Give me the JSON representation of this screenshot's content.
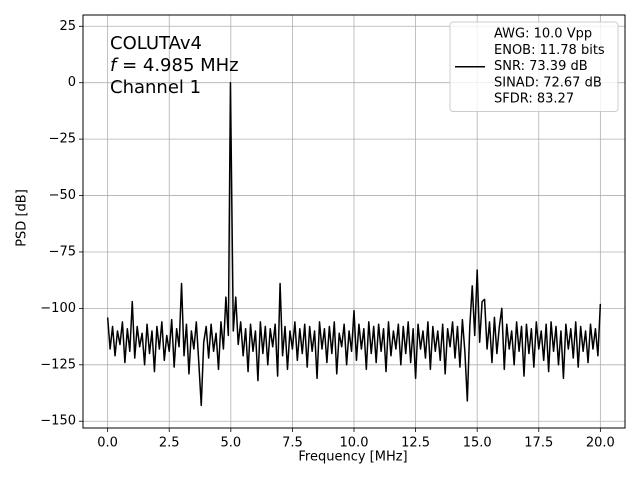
{
  "chart_data": {
    "type": "line",
    "xlabel": "Frequency [MHz]",
    "ylabel": "PSD [dB]",
    "annotation": [
      "COLUTAv4",
      [
        "f",
        " = 4.985 MHz"
      ],
      "Channel 1"
    ],
    "xlim": [
      -1,
      21
    ],
    "ylim": [
      -153,
      30
    ],
    "xticks": [
      {
        "value": 0,
        "label": "0.0"
      },
      2.5,
      {
        "value": 5,
        "label": "5.0"
      },
      7.5,
      {
        "value": 10,
        "label": "10.0"
      },
      12.5,
      {
        "value": 15,
        "label": "15.0"
      },
      17.5,
      {
        "value": 20,
        "label": "20.0"
      }
    ],
    "yticks": [
      25,
      0,
      {
        "value": -25,
        "label": "−25"
      },
      {
        "value": -50,
        "label": "−50"
      },
      {
        "value": -75,
        "label": "−75"
      },
      {
        "value": -100,
        "label": "−100"
      },
      {
        "value": -125,
        "label": "−125"
      },
      {
        "value": -150,
        "label": "−150"
      }
    ],
    "grid": true,
    "legend": "upper right",
    "x": [
      0,
      0.1,
      0.2,
      0.3,
      0.4,
      0.5,
      0.6,
      0.7,
      0.8,
      0.9,
      1,
      1.1,
      1.2,
      1.3,
      1.4,
      1.5,
      1.6,
      1.7,
      1.8,
      1.9,
      2,
      2.1,
      2.2,
      2.3,
      2.4,
      2.5,
      2.6,
      2.7,
      2.8,
      2.9,
      3,
      3.1,
      3.2,
      3.3,
      3.4,
      3.5,
      3.6,
      3.7,
      3.8,
      3.9,
      4,
      4.1,
      4.2,
      4.3,
      4.4,
      4.5,
      4.6,
      4.7,
      4.8,
      4.9,
      4.985,
      5.1,
      5.2,
      5.3,
      5.4,
      5.5,
      5.6,
      5.7,
      5.8,
      5.9,
      6,
      6.1,
      6.2,
      6.3,
      6.4,
      6.5,
      6.6,
      6.7,
      6.8,
      6.9,
      7,
      7.1,
      7.2,
      7.3,
      7.4,
      7.5,
      7.6,
      7.7,
      7.8,
      7.9,
      8,
      8.1,
      8.2,
      8.3,
      8.4,
      8.5,
      8.6,
      8.7,
      8.8,
      8.9,
      9,
      9.1,
      9.2,
      9.3,
      9.4,
      9.5,
      9.6,
      9.7,
      9.8,
      9.9,
      10,
      10.1,
      10.2,
      10.3,
      10.4,
      10.5,
      10.6,
      10.7,
      10.8,
      10.9,
      11,
      11.1,
      11.2,
      11.3,
      11.4,
      11.5,
      11.6,
      11.7,
      11.8,
      11.9,
      12,
      12.1,
      12.2,
      12.3,
      12.4,
      12.5,
      12.6,
      12.7,
      12.8,
      12.9,
      13,
      13.1,
      13.2,
      13.3,
      13.4,
      13.5,
      13.6,
      13.7,
      13.8,
      13.9,
      14,
      14.1,
      14.2,
      14.3,
      14.4,
      14.5,
      14.6,
      14.7,
      14.8,
      14.9,
      15,
      15.1,
      15.2,
      15.3,
      15.4,
      15.5,
      15.6,
      15.7,
      15.8,
      15.9,
      16,
      16.1,
      16.2,
      16.3,
      16.4,
      16.5,
      16.6,
      16.7,
      16.8,
      16.9,
      17,
      17.1,
      17.2,
      17.3,
      17.4,
      17.5,
      17.6,
      17.7,
      17.8,
      17.9,
      18,
      18.1,
      18.2,
      18.3,
      18.4,
      18.5,
      18.6,
      18.7,
      18.8,
      18.9,
      19,
      19.1,
      19.2,
      19.3,
      19.4,
      19.5,
      19.6,
      19.7,
      19.8,
      19.9,
      20
    ],
    "series": [
      {
        "name": [
          "AWG: 10.0 Vpp",
          "ENOB: 11.78 bits",
          "SNR: 73.39 dB",
          "SINAD: 72.67 dB",
          "SFDR: 83.27"
        ],
        "color": "#000000",
        "values": [
          -104,
          -118,
          -108,
          -121,
          -110,
          -116,
          -106,
          -124,
          -109,
          -119,
          -97,
          -122,
          -108,
          -117,
          -111,
          -125,
          -107,
          -120,
          -110,
          -128,
          -108,
          -118,
          -106,
          -123,
          -112,
          -119,
          -105,
          -126,
          -109,
          -117,
          -89,
          -121,
          -107,
          -129,
          -110,
          -118,
          -106,
          -124,
          -143,
          -115,
          -108,
          -122,
          -107,
          -119,
          -111,
          -127,
          -106,
          -118,
          -95,
          -112,
          0,
          -110,
          -95,
          -116,
          -106,
          -121,
          -109,
          -128,
          -107,
          -119,
          -110,
          -132,
          -106,
          -120,
          -108,
          -125,
          -109,
          -117,
          -107,
          -130,
          -89,
          -121,
          -108,
          -127,
          -110,
          -118,
          -106,
          -123,
          -109,
          -120,
          -107,
          -126,
          -108,
          -119,
          -110,
          -131,
          -106,
          -118,
          -109,
          -124,
          -108,
          -120,
          -106,
          -129,
          -111,
          -117,
          -107,
          -125,
          -110,
          -119,
          -101,
          -123,
          -107,
          -118,
          -109,
          -127,
          -106,
          -120,
          -108,
          -124,
          -107,
          -119,
          -109,
          -128,
          -106,
          -121,
          -110,
          -118,
          -107,
          -125,
          -108,
          -120,
          -106,
          -124,
          -109,
          -131,
          -107,
          -118,
          -110,
          -122,
          -106,
          -127,
          -108,
          -119,
          -110,
          -123,
          -107,
          -129,
          -109,
          -117,
          -106,
          -122,
          -108,
          -126,
          -105,
          -119,
          -141,
          -108,
          -90,
          -112,
          -83,
          -115,
          -97,
          -96,
          -118,
          -106,
          -124,
          -104,
          -120,
          -108,
          -100,
          -127,
          -107,
          -118,
          -110,
          -125,
          -106,
          -119,
          -108,
          -130,
          -107,
          -120,
          -109,
          -126,
          -106,
          -118,
          -110,
          -123,
          -107,
          -128,
          -106,
          -119,
          -108,
          -125,
          -110,
          -131,
          -107,
          -118,
          -109,
          -122,
          -106,
          -126,
          -108,
          -119,
          -110,
          -124,
          -107,
          -118,
          -109,
          -121,
          -98
        ]
      }
    ]
  }
}
